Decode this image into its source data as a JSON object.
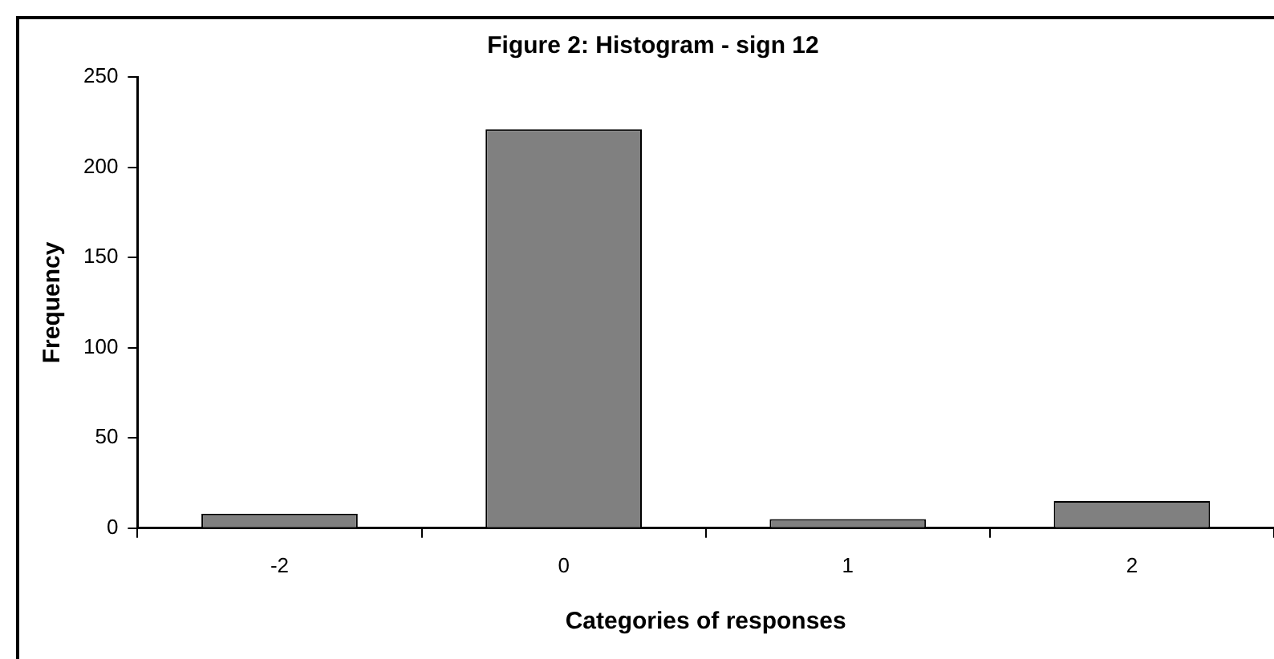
{
  "chart_data": {
    "type": "bar",
    "title": "Figure 2: Histogram - sign 12",
    "xlabel": "Categories of responses",
    "ylabel": "Frequency",
    "categories": [
      "-2",
      "0",
      "1",
      "2"
    ],
    "series": [
      {
        "color": "#808080",
        "values": [
          8,
          221,
          5,
          15
        ]
      }
    ],
    "ylim": [
      0,
      250
    ],
    "yticks": [
      0,
      50,
      100,
      150,
      200,
      250
    ],
    "grid": false,
    "legend": false
  }
}
